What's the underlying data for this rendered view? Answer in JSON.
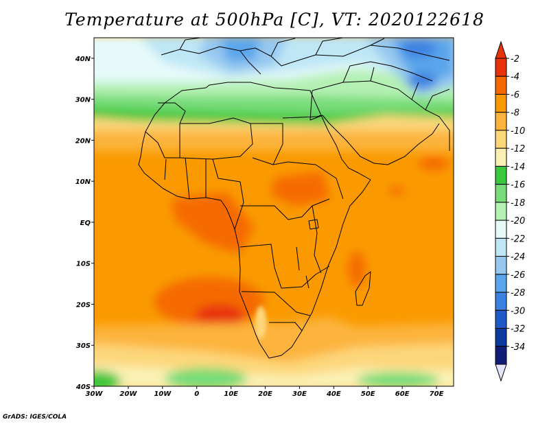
{
  "title": "Temperature at 500hPa [C], VT: 2020122618",
  "credit": "GrADS: IGES/COLA",
  "map": {
    "lon_range": [
      -30,
      75
    ],
    "lat_range": [
      -40,
      45
    ],
    "lon_ticks": [
      "30W",
      "20W",
      "10W",
      "0",
      "10E",
      "20E",
      "30E",
      "40E",
      "50E",
      "60E",
      "70E"
    ],
    "lat_ticks": [
      "40S",
      "30S",
      "20S",
      "10S",
      "EQ",
      "10N",
      "20N",
      "30N",
      "40N"
    ]
  },
  "colorbar": {
    "labels": [
      "-2",
      "-4",
      "-6",
      "-8",
      "-10",
      "-12",
      "-14",
      "-16",
      "-18",
      "-20",
      "-22",
      "-24",
      "-26",
      "-28",
      "-30",
      "-32",
      "-34"
    ],
    "colors": [
      "#e8320a",
      "#f56a00",
      "#fa9a00",
      "#fcb43c",
      "#fcd77a",
      "#fbf0b4",
      "#3cc83c",
      "#78dc78",
      "#b4f0b4",
      "#e6fafa",
      "#bee6f5",
      "#96c8f0",
      "#5aa5eb",
      "#3c82e1",
      "#1e5ac8",
      "#0a3ca0",
      "#101e78"
    ],
    "over_color": "#e8320a",
    "under_color": "#e6e6fa"
  }
}
